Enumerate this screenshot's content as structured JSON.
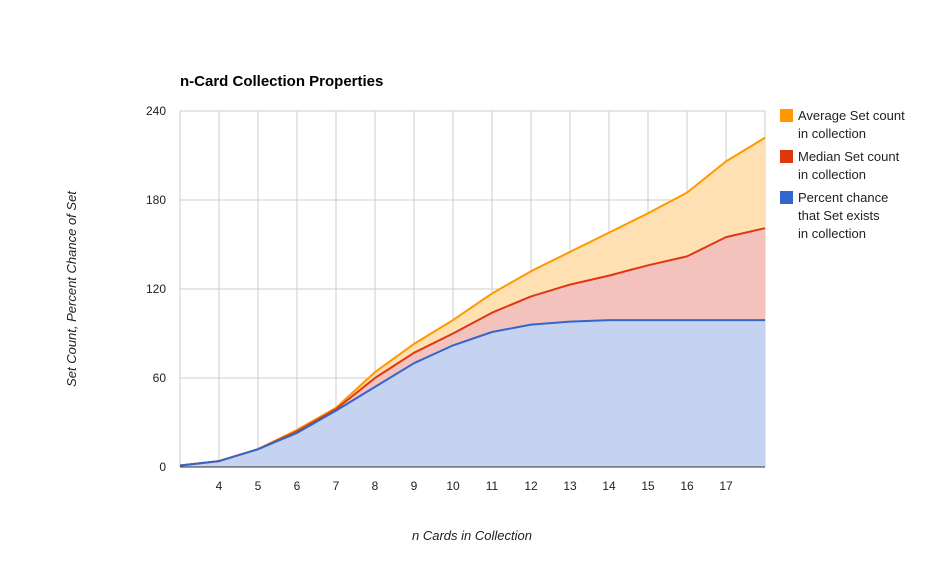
{
  "chart_data": {
    "type": "area",
    "title": "n-Card Collection Properties",
    "xlabel": "n Cards in Collection",
    "ylabel": "Set Count, Percent Chance of Set",
    "x": [
      3,
      4,
      5,
      6,
      7,
      8,
      9,
      10,
      11,
      12,
      13,
      14,
      15,
      16,
      17,
      18
    ],
    "x_tick_labels": [
      "4",
      "5",
      "6",
      "7",
      "8",
      "9",
      "10",
      "11",
      "12",
      "13",
      "14",
      "15",
      "16",
      "17"
    ],
    "y_ticks": [
      0,
      60,
      120,
      180,
      240
    ],
    "ylim": [
      0,
      240
    ],
    "xlim": [
      3,
      18
    ],
    "grid": true,
    "legend_position": "right",
    "series": [
      {
        "name": "Average Set count in collection",
        "color": "#ff9900",
        "fill": "#ffe0b2",
        "values": [
          1,
          4,
          12,
          25,
          40,
          64,
          83,
          99,
          117,
          132,
          145,
          158,
          171,
          185,
          206,
          222
        ]
      },
      {
        "name": "Median Set count in collection",
        "color": "#dc3912",
        "fill": "#f4c2bc",
        "values": [
          1,
          4,
          12,
          24,
          39,
          60,
          77,
          90,
          104,
          115,
          123,
          129,
          136,
          142,
          155,
          161
        ]
      },
      {
        "name": "Percent chance that Set exists in collection",
        "color": "#3366cc",
        "fill": "#c5d2f0",
        "values": [
          1,
          4,
          12,
          23,
          38,
          54,
          70,
          82,
          91,
          96,
          98,
          99,
          99,
          99,
          99,
          99
        ]
      }
    ]
  }
}
